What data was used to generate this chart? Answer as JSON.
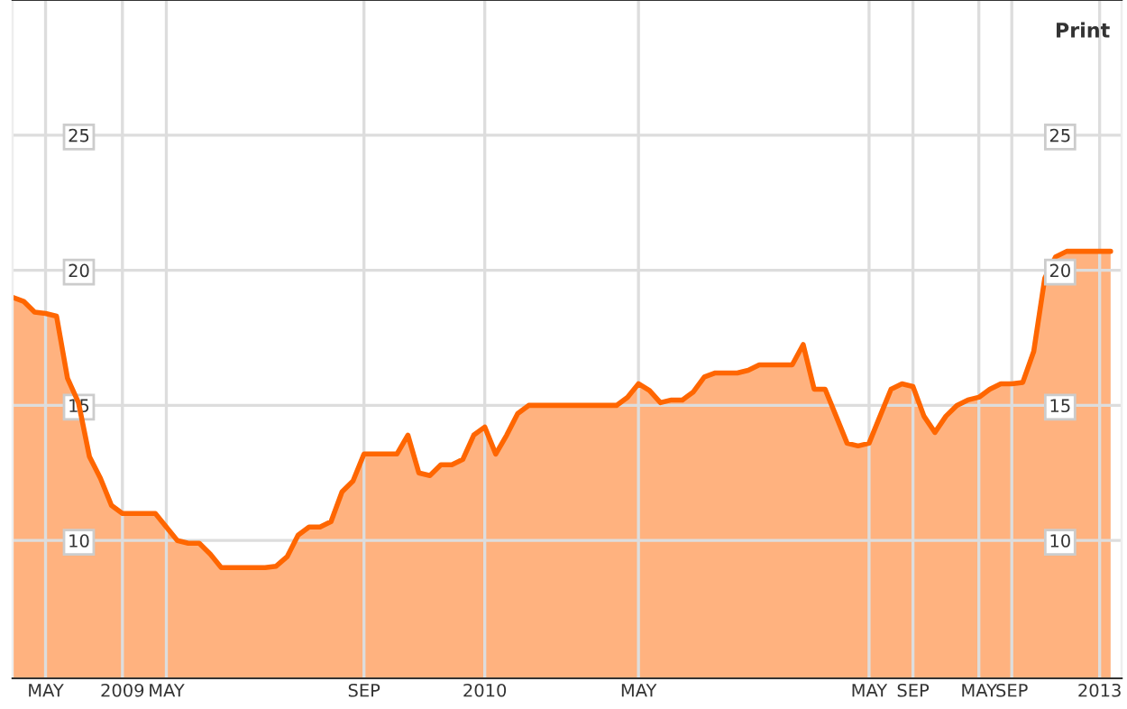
{
  "chart_data": {
    "type": "area",
    "annotations": [
      "Print"
    ],
    "categories": [
      null,
      null,
      null,
      "MAY",
      null,
      null,
      null,
      null,
      null,
      null,
      "2009",
      null,
      null,
      null,
      "MAY",
      null,
      null,
      null,
      null,
      null,
      null,
      null,
      null,
      null,
      null,
      null,
      null,
      null,
      null,
      null,
      null,
      null,
      "SEP",
      null,
      null,
      null,
      null,
      null,
      null,
      null,
      null,
      null,
      null,
      "2010",
      null,
      null,
      null,
      null,
      null,
      null,
      null,
      null,
      null,
      null,
      null,
      null,
      null,
      "MAY",
      null,
      null,
      null,
      null,
      null,
      null,
      null,
      null,
      null,
      null,
      null,
      null,
      null,
      null,
      null,
      null,
      null,
      null,
      null,
      null,
      "MAY",
      null,
      null,
      null,
      "SEP",
      null,
      null,
      null,
      null,
      null,
      "MAY",
      null,
      null,
      "SEP",
      null,
      null,
      null,
      null,
      null,
      null,
      null,
      "2013",
      null
    ],
    "series": [
      {
        "color": "#ff6600",
        "values": [
          19.0,
          18.85,
          18.45,
          18.4,
          18.3,
          16.0,
          15.1,
          13.1,
          12.3,
          11.3,
          11.0,
          11.0,
          11.0,
          11.0,
          10.5,
          10.0,
          9.9,
          9.9,
          9.5,
          9.0,
          9.0,
          9.0,
          9.0,
          9.0,
          9.05,
          9.4,
          10.2,
          10.5,
          10.5,
          10.7,
          11.8,
          12.2,
          13.2,
          13.2,
          13.2,
          13.2,
          13.9,
          12.5,
          12.4,
          12.8,
          12.8,
          13.0,
          13.9,
          14.2,
          13.2,
          13.9,
          14.7,
          15.0,
          15.0,
          15.0,
          15.0,
          15.0,
          15.0,
          15.0,
          15.0,
          15.0,
          15.3,
          15.8,
          15.55,
          15.1,
          15.2,
          15.2,
          15.5,
          16.05,
          16.2,
          16.2,
          16.2,
          16.3,
          16.5,
          16.5,
          16.5,
          16.5,
          17.25,
          15.6,
          15.6,
          14.6,
          13.6,
          13.5,
          13.6,
          14.6,
          15.6,
          15.8,
          15.7,
          14.6,
          14.0,
          14.6,
          15.0,
          15.2,
          15.3,
          15.6,
          15.8,
          15.8,
          15.85,
          17.0,
          19.7,
          20.5,
          20.7,
          20.7,
          20.7,
          20.7,
          20.7
        ]
      }
    ],
    "ylim": [
      4.9,
      30
    ],
    "yticks": [
      10,
      15,
      20,
      25
    ],
    "y2lim": [
      4.9,
      30
    ],
    "y2ticks": [
      10,
      15,
      20,
      25
    ],
    "grid": true,
    "line_style": "solid"
  }
}
